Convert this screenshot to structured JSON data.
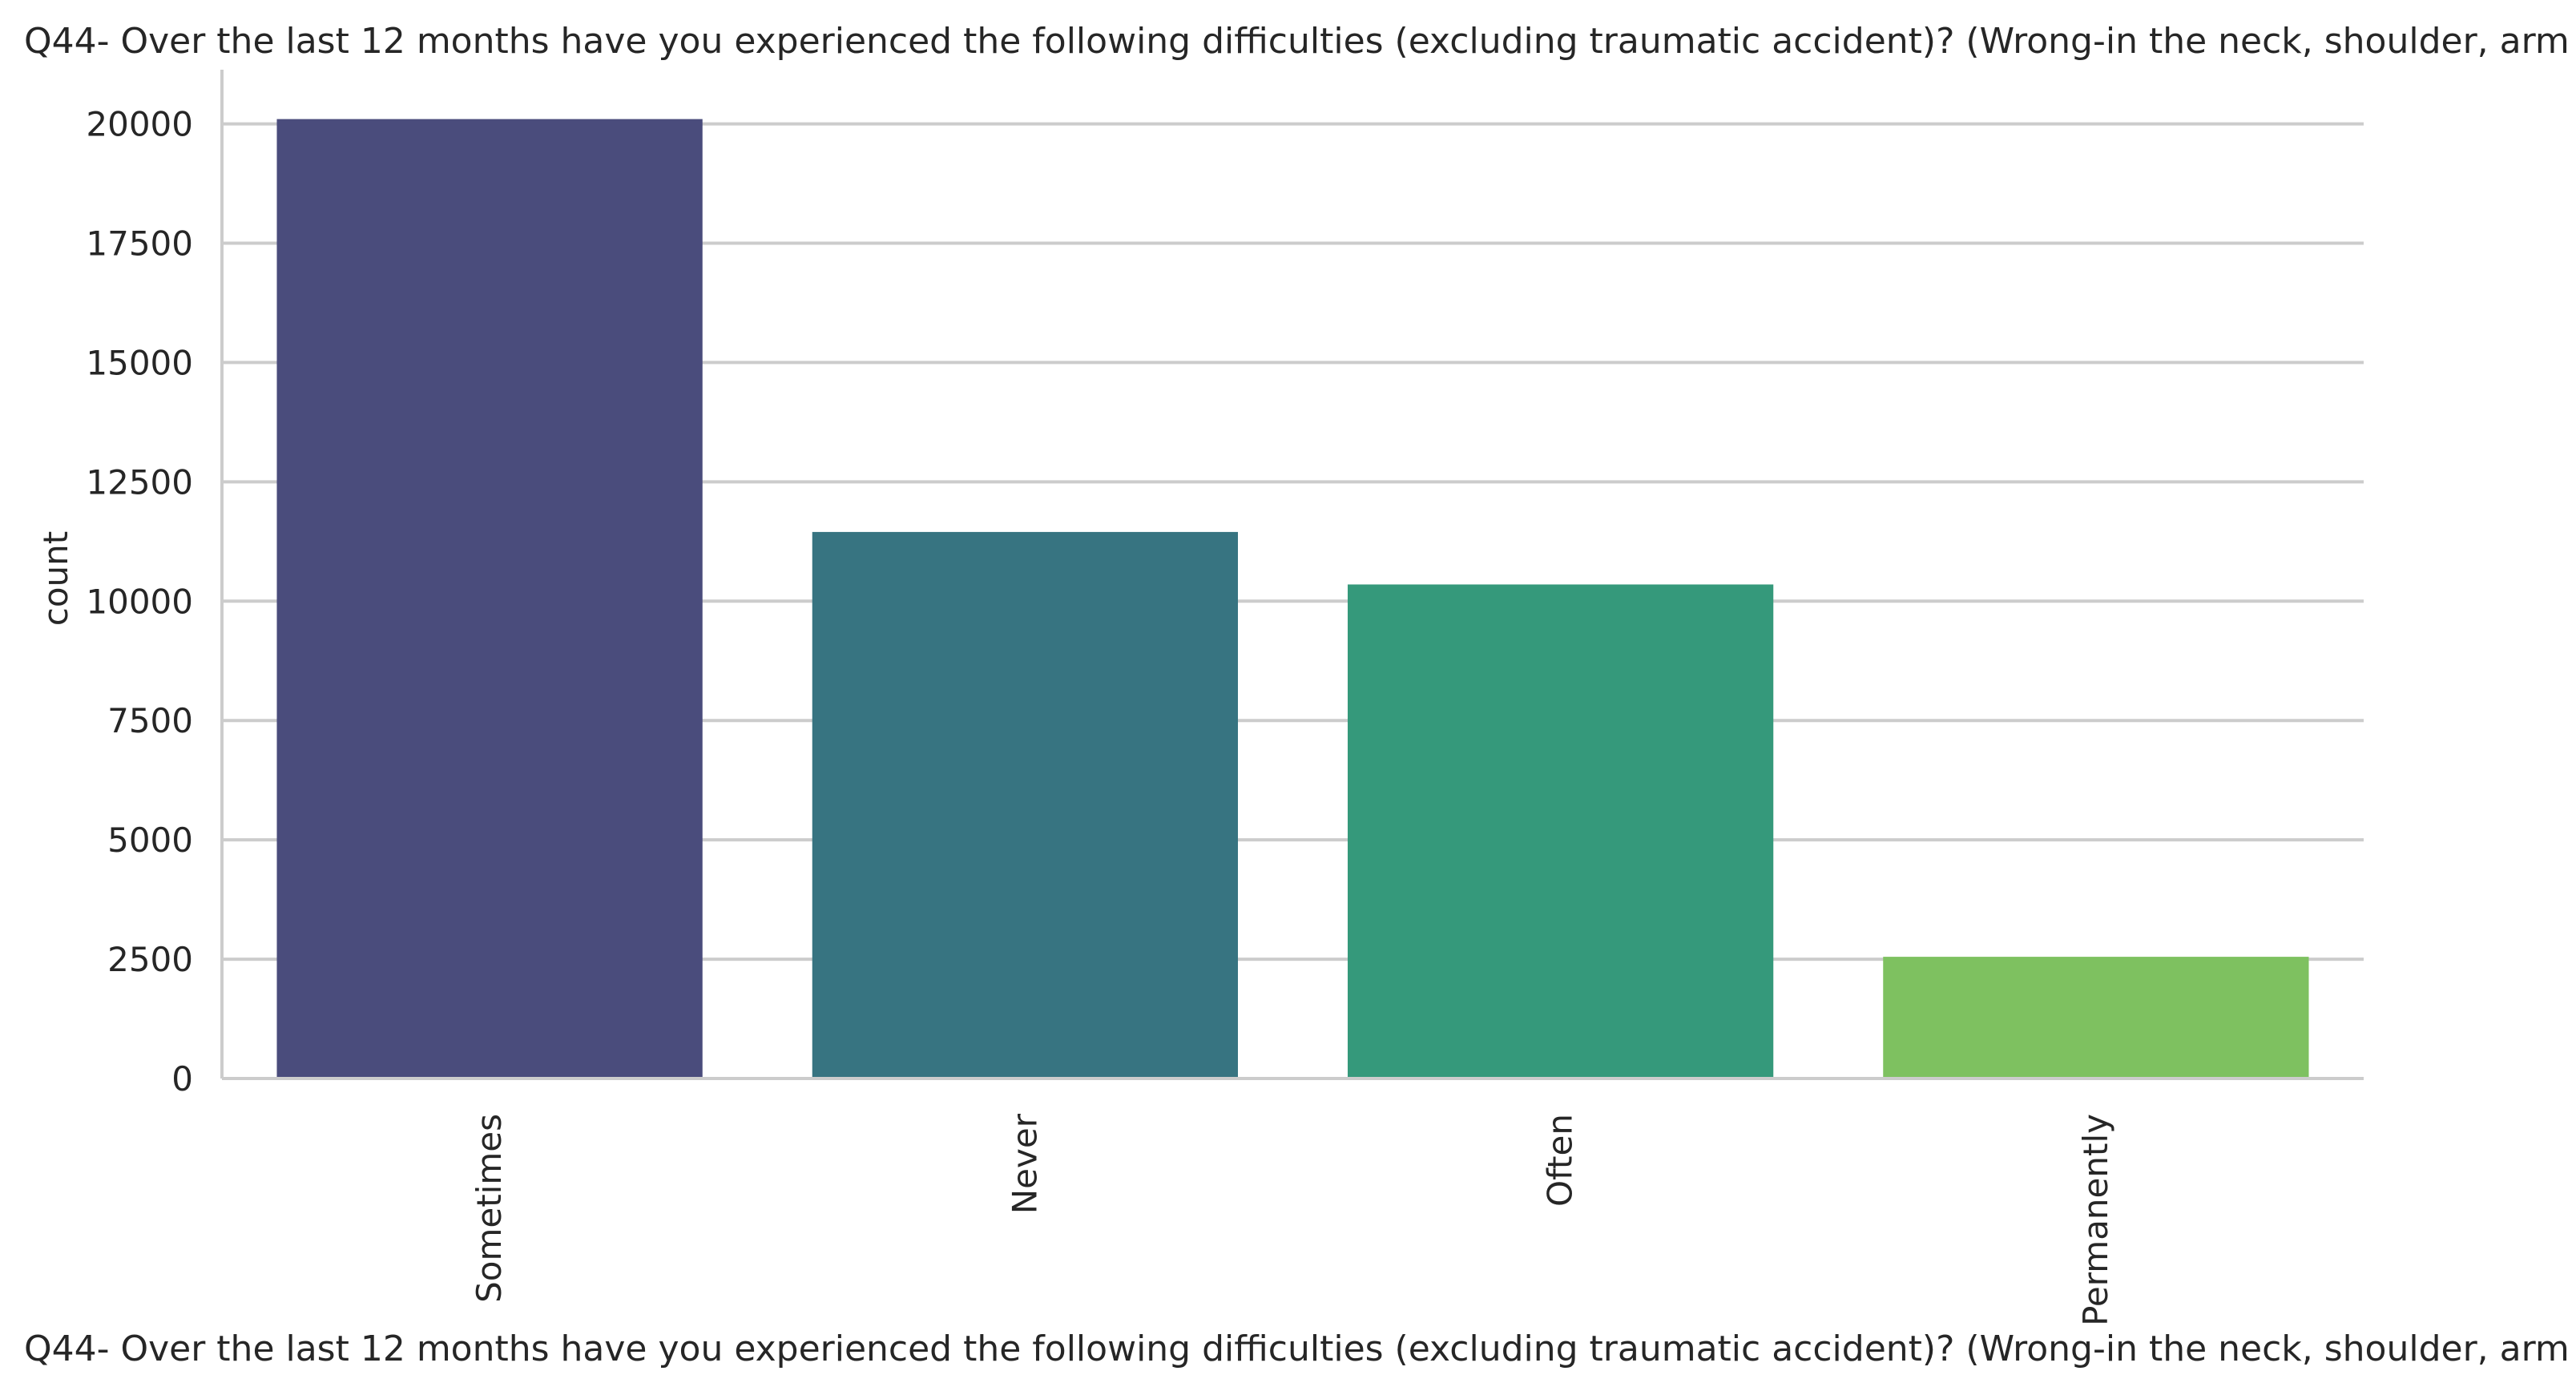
{
  "chart_data": {
    "type": "bar",
    "title": "Q44- Over the last 12 months have you experienced the following difficulties (excluding traumatic accident)? (Wrong-in the neck, shoulder, arm",
    "xlabel": "Q44- Over the last 12 months have you experienced the following difficulties (excluding traumatic accident)? (Wrong-in the neck, shoulder, arm",
    "ylabel": "count",
    "categories": [
      "Sometimes",
      "Never",
      "Often",
      "Permanently"
    ],
    "values": [
      20100,
      11450,
      10350,
      2550
    ],
    "ylim": [
      0,
      21000
    ],
    "yticks": [
      0,
      2500,
      5000,
      7500,
      10000,
      12500,
      15000,
      17500,
      20000
    ],
    "ytick_labels": [
      "0",
      "2500",
      "5000",
      "7500",
      "10000",
      "12500",
      "15000",
      "17500",
      "20000"
    ],
    "xtick_rotation": "vertical",
    "grid": "horizontal",
    "colors": [
      "#4a4c7c",
      "#377481",
      "#35997b",
      "#7ec160"
    ],
    "gridline_color": "#cccccc",
    "axis_color": "#cccccc"
  }
}
